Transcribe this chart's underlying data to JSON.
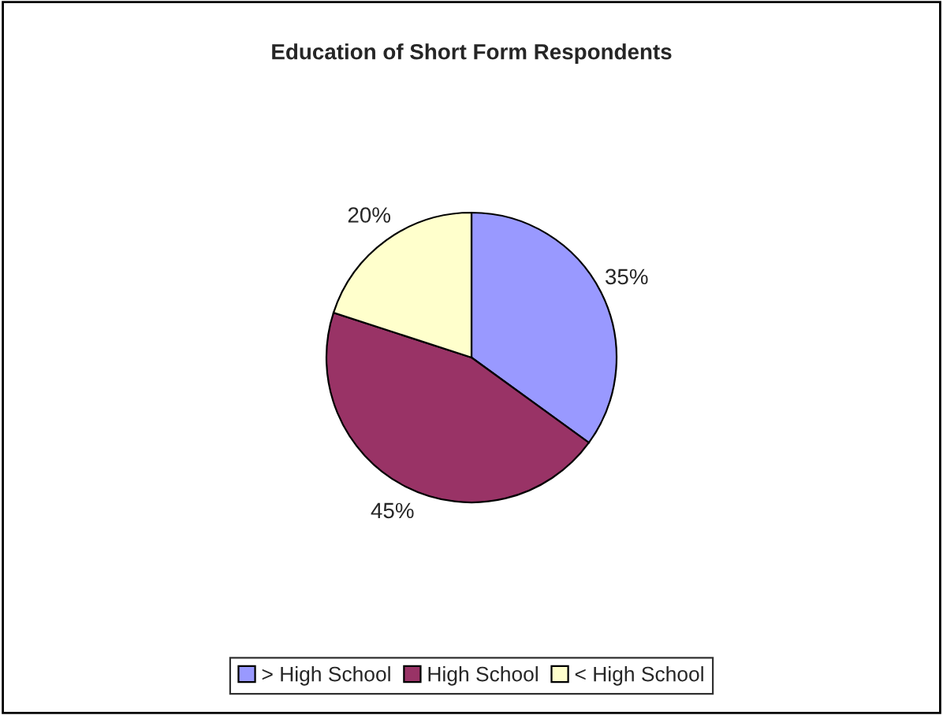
{
  "chart_data": {
    "type": "pie",
    "title": "Education of Short Form Respondents",
    "categories": [
      "> High School",
      "High School",
      "< High School"
    ],
    "values": [
      35,
      45,
      20
    ],
    "value_labels": [
      "35%",
      "45%",
      "20%"
    ],
    "colors": [
      "#9999ff",
      "#993366",
      "#ffffcc"
    ],
    "legend": "bottom"
  }
}
